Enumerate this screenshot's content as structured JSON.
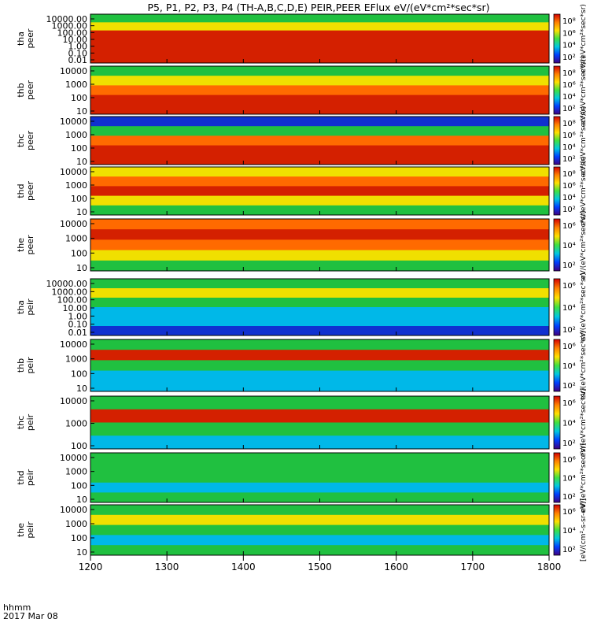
{
  "figure": {
    "title": "P5, P1, P2, P3, P4 (TH-A,B,C,D,E) PEIR,PEER EFlux eV/(eV*cm²*sec*sr)",
    "time_label_line1": "hhmm",
    "time_label_line2": "2017 Mar 08"
  },
  "chart_data": [
    {
      "type": "heatmap",
      "probe": "tha",
      "species": "peer",
      "ylabel_probe": "tha",
      "ylabel_species": "peer",
      "yscale": "log",
      "yticks": [
        "10000.00",
        "1000.00",
        "100.00",
        "10.00",
        "1.00",
        "0.10",
        "0.01"
      ],
      "colorbar_ticks": [
        "10⁸",
        "10⁶",
        "10⁴",
        "10²"
      ],
      "colorbar_label": "eV/(eV*cm²*sec*sr)"
    },
    {
      "type": "heatmap",
      "probe": "thb",
      "species": "peer",
      "ylabel_probe": "thb",
      "ylabel_species": "peer",
      "yscale": "log",
      "yticks": [
        "10000",
        "1000",
        "100",
        "10"
      ],
      "colorbar_ticks": [
        "10⁸",
        "10⁶",
        "10⁴",
        "10²"
      ],
      "colorbar_label": "eV/(eV*cm²*sec*sr)"
    },
    {
      "type": "heatmap",
      "probe": "thc",
      "species": "peer",
      "ylabel_probe": "thc",
      "ylabel_species": "peer",
      "yscale": "log",
      "yticks": [
        "10000",
        "1000",
        "100",
        "10"
      ],
      "colorbar_ticks": [
        "10⁸",
        "10⁶",
        "10⁴",
        "10²"
      ],
      "colorbar_label": "eV/(eV*cm²*sec*sr)"
    },
    {
      "type": "heatmap",
      "probe": "thd",
      "species": "peer",
      "ylabel_probe": "thd",
      "ylabel_species": "peer",
      "yscale": "log",
      "yticks": [
        "10000",
        "1000",
        "100",
        "10"
      ],
      "colorbar_ticks": [
        "10⁸",
        "10⁶",
        "10⁴",
        "10²"
      ],
      "colorbar_label": "eV/(eV*cm²*sec*sr)"
    },
    {
      "type": "heatmap",
      "probe": "the",
      "species": "peer",
      "ylabel_probe": "the",
      "ylabel_species": "peer",
      "yscale": "log",
      "yticks": [
        "10000",
        "1000",
        "100",
        "10"
      ],
      "colorbar_ticks": [
        "10⁶",
        "10⁴",
        "10²"
      ],
      "colorbar_label": "eV/(eV*cm²*sec*sr)"
    },
    {
      "type": "heatmap",
      "probe": "tha",
      "species": "peir",
      "ylabel_probe": "tha",
      "ylabel_species": "peir",
      "yscale": "log",
      "yticks": [
        "10000.00",
        "1000.00",
        "100.00",
        "10.00",
        "1.00",
        "0.10",
        "0.01"
      ],
      "colorbar_ticks": [
        "10⁶",
        "10⁴",
        "10²"
      ],
      "colorbar_label": "eV/(eV*cm²*sec*sr)"
    },
    {
      "type": "heatmap",
      "probe": "thb",
      "species": "peir",
      "ylabel_probe": "thb",
      "ylabel_species": "peir",
      "yscale": "log",
      "yticks": [
        "10000",
        "1000",
        "100",
        "10"
      ],
      "colorbar_ticks": [
        "10⁶",
        "10⁴",
        "10²"
      ],
      "colorbar_label": "eV/(eV*cm²*sec*sr)"
    },
    {
      "type": "heatmap",
      "probe": "thc",
      "species": "peir",
      "ylabel_probe": "thc",
      "ylabel_species": "peir",
      "yscale": "log",
      "yticks": [
        "10000",
        "1000",
        "100"
      ],
      "colorbar_ticks": [
        "10⁶",
        "10⁴",
        "10²"
      ],
      "colorbar_label": "eV/(eV*cm²*sec*sr)"
    },
    {
      "type": "heatmap",
      "probe": "thd",
      "species": "peir",
      "ylabel_probe": "thd",
      "ylabel_species": "peir",
      "yscale": "log",
      "yticks": [
        "10000",
        "1000",
        "100",
        "10"
      ],
      "colorbar_ticks": [
        "10⁶",
        "10⁴",
        "10²"
      ],
      "colorbar_label": "eV/(eV*cm²*sec*sr)"
    },
    {
      "type": "heatmap",
      "probe": "the",
      "species": "peir",
      "ylabel_probe": "the",
      "ylabel_species": "peir",
      "yscale": "log",
      "yticks": [
        "10000",
        "1000",
        "100",
        "10"
      ],
      "colorbar_ticks": [
        "10⁶",
        "10⁴",
        "10²"
      ],
      "colorbar_label": "[eV/(cm²-s-sr-eV)]"
    }
  ],
  "x_axis": {
    "range": [
      1200,
      1800
    ],
    "tick_labels": [
      "1200",
      "1300",
      "1400",
      "1500",
      "1600",
      "1700",
      "1800"
    ]
  },
  "colors": {
    "background": "#ffffff",
    "spectrum_red": "#d42000",
    "spectrum_orange": "#ff6a00",
    "spectrum_yellow": "#f0e000",
    "spectrum_green": "#20c040",
    "spectrum_cyan": "#00b8e8",
    "spectrum_blue": "#1030d0",
    "colorbar": [
      "#d40000",
      "#ff8000",
      "#ffe000",
      "#40e040",
      "#00c8e0",
      "#0040ff",
      "#400080"
    ]
  }
}
